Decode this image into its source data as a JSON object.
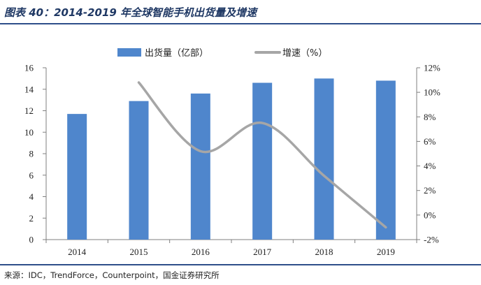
{
  "header": {
    "title": "图表 40：2014-2019 年全球智能手机出货量及增速"
  },
  "footer": {
    "source": "来源：IDC，TrendForce，Counterpoint，国金证券研究所"
  },
  "colors": {
    "bar": "#4f86cc",
    "line": "#a6a6a6",
    "rule": "#2e4f8a",
    "title": "#1f3864"
  },
  "chart_data": {
    "type": "bar",
    "categories": [
      "2014",
      "2015",
      "2016",
      "2017",
      "2018",
      "2019"
    ],
    "series": [
      {
        "name": "出货量（亿部）",
        "type": "bar",
        "axis": "left",
        "values": [
          11.7,
          12.9,
          13.6,
          14.6,
          15.0,
          14.8
        ]
      },
      {
        "name": "增速（%）",
        "type": "line",
        "axis": "right",
        "smooth": true,
        "values": [
          null,
          10.8,
          5.2,
          7.5,
          3.2,
          -1.0
        ]
      }
    ],
    "y_left": {
      "min": 0,
      "max": 16,
      "ticks": [
        "0",
        "2",
        "4",
        "6",
        "8",
        "10",
        "12",
        "14",
        "16"
      ]
    },
    "y_right": {
      "min": -2,
      "max": 12,
      "ticks": [
        "-2%",
        "0%",
        "2%",
        "4%",
        "6%",
        "8%",
        "10%",
        "12%"
      ]
    },
    "legend": "top",
    "grid": false
  }
}
